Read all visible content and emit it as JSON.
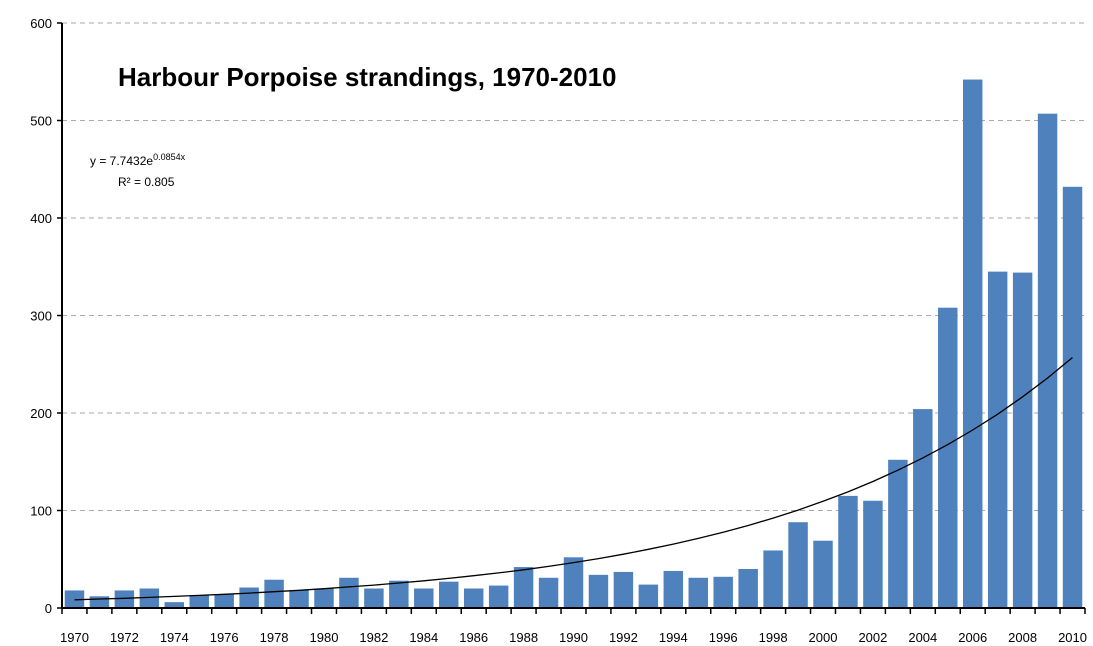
{
  "chart_data": {
    "type": "bar",
    "title": "Harbour Porpoise strandings, 1970-2010",
    "categories": [
      "1970",
      null,
      "1972",
      null,
      "1974",
      null,
      "1976",
      null,
      "1978",
      null,
      "1980",
      null,
      "1982",
      null,
      "1984",
      null,
      "1986",
      null,
      "1988",
      null,
      "1990",
      null,
      "1992",
      null,
      "1994",
      null,
      "1996",
      null,
      "1998",
      null,
      "2000",
      null,
      "2002",
      null,
      "2004",
      null,
      "2006",
      null,
      "2008",
      null,
      "2010"
    ],
    "values": [
      18,
      12,
      18,
      20,
      6,
      13,
      14,
      21,
      29,
      18,
      20,
      31,
      20,
      28,
      20,
      27,
      20,
      23,
      42,
      31,
      52,
      34,
      37,
      24,
      38,
      31,
      32,
      40,
      59,
      88,
      69,
      115,
      110,
      152,
      204,
      308,
      542,
      345,
      344,
      507,
      432
    ],
    "color": "#4f81bd",
    "trendline": {
      "color": "#000000",
      "values": [
        8.4,
        9.2,
        10.0,
        10.9,
        11.9,
        12.9,
        14.1,
        15.3,
        16.7,
        18.2,
        19.8,
        21.6,
        23.5,
        25.6,
        27.9,
        30.4,
        33.1,
        36.0,
        39.2,
        42.7,
        46.6,
        50.7,
        55.2,
        60.2,
        65.5,
        71.4,
        77.7,
        84.6,
        92.2,
        100.4,
        109.4,
        119.1,
        129.7,
        141.3,
        153.9,
        167.6,
        182.6,
        198.8,
        216.6,
        235.9,
        256.9
      ],
      "equation": "y = 7.7432e",
      "exponent": "0.0854x",
      "r_squared": "R² = 0.805"
    },
    "ylim": [
      0,
      600
    ],
    "yticks": [
      0,
      100,
      200,
      300,
      400,
      500,
      600
    ],
    "grid": true
  }
}
